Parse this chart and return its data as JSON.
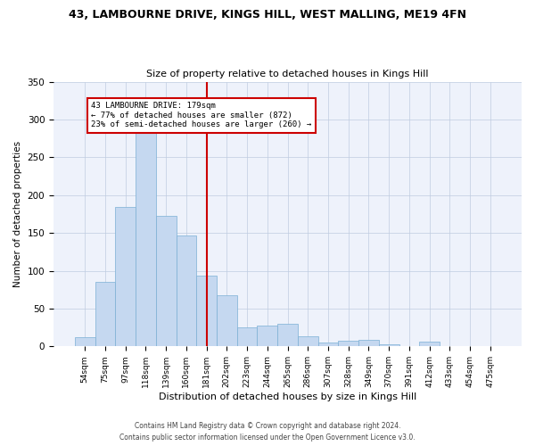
{
  "title1": "43, LAMBOURNE DRIVE, KINGS HILL, WEST MALLING, ME19 4FN",
  "title2": "Size of property relative to detached houses in Kings Hill",
  "xlabel": "Distribution of detached houses by size in Kings Hill",
  "ylabel": "Number of detached properties",
  "bar_color": "#c5d8f0",
  "bar_edge_color": "#7bafd4",
  "background_color": "#eef2fb",
  "categories": [
    "54sqm",
    "75sqm",
    "97sqm",
    "118sqm",
    "139sqm",
    "160sqm",
    "181sqm",
    "202sqm",
    "223sqm",
    "244sqm",
    "265sqm",
    "286sqm",
    "307sqm",
    "328sqm",
    "349sqm",
    "370sqm",
    "391sqm",
    "412sqm",
    "433sqm",
    "454sqm",
    "475sqm"
  ],
  "values": [
    12,
    85,
    184,
    290,
    172,
    147,
    93,
    68,
    25,
    27,
    30,
    13,
    5,
    7,
    9,
    3,
    0,
    6,
    0,
    0,
    0
  ],
  "vline_x": 6,
  "vline_color": "#cc0000",
  "annotation_text": "43 LAMBOURNE DRIVE: 179sqm\n← 77% of detached houses are smaller (872)\n23% of semi-detached houses are larger (260) →",
  "annotation_box_color": "#ffffff",
  "annotation_box_edge": "#cc0000",
  "ylim": [
    0,
    350
  ],
  "yticks": [
    0,
    50,
    100,
    150,
    200,
    250,
    300,
    350
  ],
  "footer1": "Contains HM Land Registry data © Crown copyright and database right 2024.",
  "footer2": "Contains public sector information licensed under the Open Government Licence v3.0."
}
